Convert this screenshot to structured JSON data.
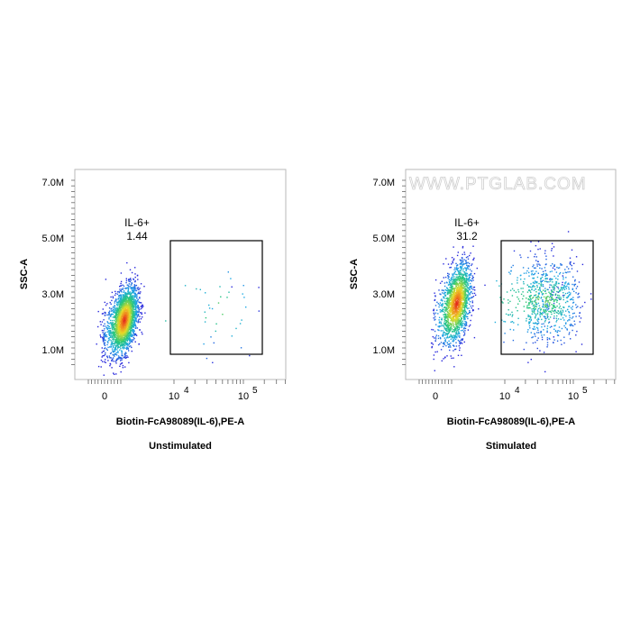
{
  "chart_data": [
    {
      "type": "scatter",
      "subtype": "flow-cytometry-density-plot",
      "caption": "Unstimulated",
      "xlabel": "Biotin-FcA98089(IL-6),PE-A",
      "ylabel": "SSC-A",
      "x_scale": "biexponential",
      "x_ticks": [
        "0",
        "10",
        "4",
        "10",
        "5"
      ],
      "y_ticks": [
        "7.0M",
        "5.0M",
        "3.0M",
        "1.0M"
      ],
      "ylim": [
        0,
        8000000
      ],
      "gate": {
        "name": "IL-6+",
        "value": "1.44",
        "x_range": [
          10000,
          180000
        ],
        "y_range": [
          800000,
          4900000
        ]
      },
      "populations": [
        {
          "center": [
            1800,
            2200000
          ],
          "spread": [
            900,
            550000
          ],
          "share": 0.985
        },
        {
          "center": [
            40000,
            2600000
          ],
          "spread": [
            50000,
            900000
          ],
          "share": 0.015
        }
      ],
      "watermark": ""
    },
    {
      "type": "scatter",
      "subtype": "flow-cytometry-density-plot",
      "caption": "Stimulated",
      "xlabel": "Biotin-FcA98089(IL-6),PE-A",
      "ylabel": "SSC-A",
      "x_scale": "biexponential",
      "x_ticks": [
        "0",
        "10",
        "4",
        "10",
        "5"
      ],
      "y_ticks": [
        "7.0M",
        "5.0M",
        "3.0M",
        "1.0M"
      ],
      "ylim": [
        0,
        8000000
      ],
      "gate": {
        "name": "IL-6+",
        "value": "31.2",
        "x_range": [
          10000,
          180000
        ],
        "y_range": [
          800000,
          4900000
        ]
      },
      "populations": [
        {
          "center": [
            2000,
            2800000
          ],
          "spread": [
            1000,
            650000
          ],
          "share": 0.69
        },
        {
          "center": [
            35000,
            2900000
          ],
          "spread": [
            40000,
            750000
          ],
          "share": 0.31
        }
      ],
      "watermark": "WWW.PTGLAB.COM"
    }
  ]
}
